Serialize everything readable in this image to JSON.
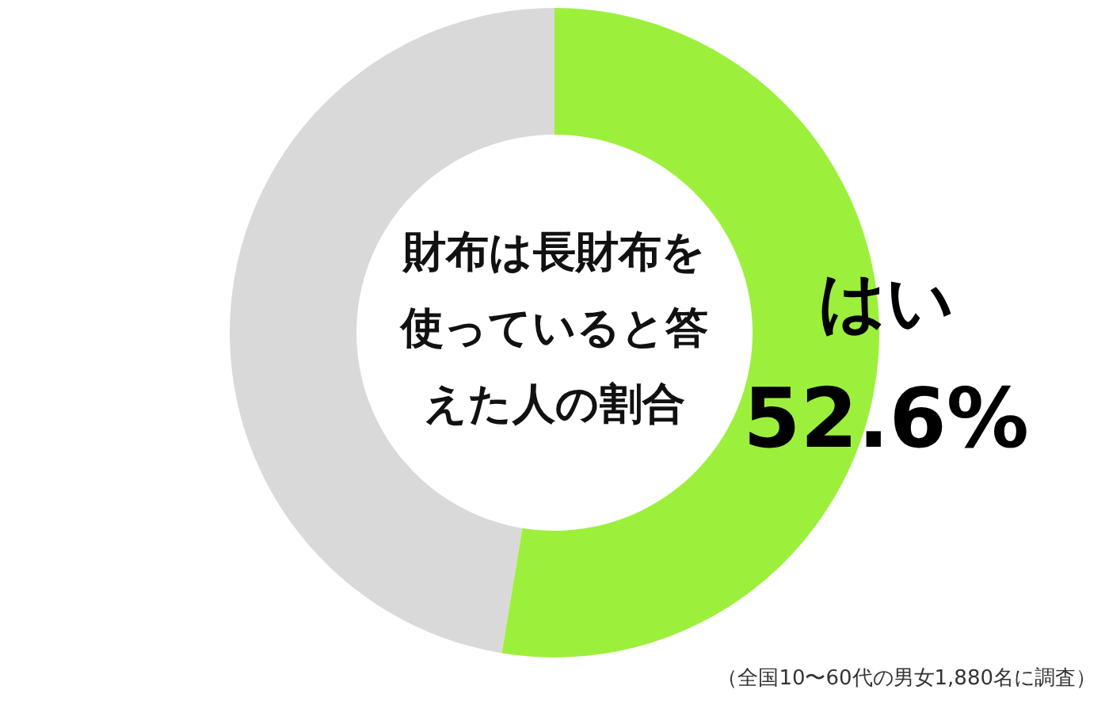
{
  "chart_data": {
    "type": "donut",
    "title": "財布は長財布を使っていると答えた人の割合",
    "categories": [
      "はい",
      null
    ],
    "values": [
      52.6,
      47.4
    ],
    "colors": [
      "#9cf03c",
      "#d9d9d9"
    ],
    "value_labels": [
      "52.6%",
      null
    ],
    "annotations": [
      "（全国10〜60代の男女1,880名に調査）"
    ]
  }
}
